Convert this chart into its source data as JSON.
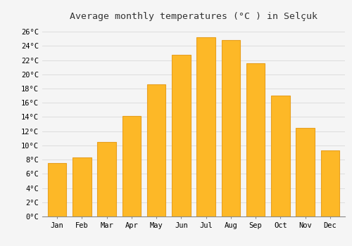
{
  "title": "Average monthly temperatures (°C ) in Selçuk",
  "months": [
    "Jan",
    "Feb",
    "Mar",
    "Apr",
    "May",
    "Jun",
    "Jul",
    "Aug",
    "Sep",
    "Oct",
    "Nov",
    "Dec"
  ],
  "values": [
    7.5,
    8.3,
    10.5,
    14.1,
    18.6,
    22.7,
    25.2,
    24.8,
    21.6,
    17.0,
    12.5,
    9.3
  ],
  "bar_color": "#FDB827",
  "bar_edge_color": "#E8A020",
  "background_color": "#f5f5f5",
  "grid_color": "#dddddd",
  "ylim": [
    0,
    27
  ],
  "ytick_step": 2,
  "title_fontsize": 9.5,
  "tick_fontsize": 7.5,
  "font_family": "monospace"
}
